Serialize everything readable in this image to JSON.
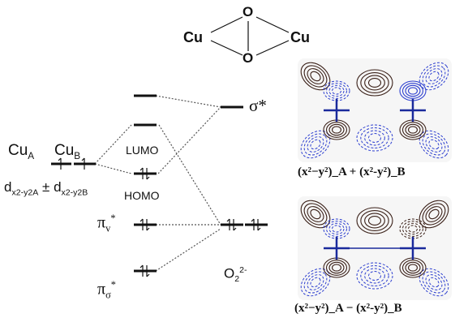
{
  "colors": {
    "level": "#111111",
    "connector": "#555555",
    "contour_positive": "#3a2018",
    "contour_negative": "#2d3fd0",
    "atom": "#1a2a9c"
  },
  "structure": {
    "cu_left": "Cu",
    "cu_right": "Cu",
    "o_top": "O",
    "o_bottom": "O"
  },
  "left_column": {
    "cu_a": "Cu",
    "cu_a_sub": "A",
    "cu_b": "Cu",
    "cu_b_sub": "B",
    "d_orbital_a": "d",
    "d_orbital_a_sub": "x2-y2A",
    "plus_minus": "±",
    "d_orbital_b": "d",
    "d_orbital_b_sub": "x2-y2B"
  },
  "mo_labels": {
    "lumo": "LUMO",
    "homo": "HOMO"
  },
  "o2_column": {
    "sigma_star": "σ*",
    "pi_v_star": "π",
    "pi_v_sub": "v",
    "pi_v_sup": "*",
    "pi_sigma_star": "π",
    "pi_sigma_sub": "σ",
    "pi_sigma_sup": "*",
    "o2_label": "O",
    "o2_sub": "2",
    "o2_sup": "2-"
  },
  "orbital_plots": {
    "top_caption": "(x²−y²)_A + (x²-y²)_B",
    "bottom_caption": "(x²−y²)_A − (x²-y²)_B"
  },
  "electrons": {
    "single": "1",
    "pair": "⇅"
  }
}
